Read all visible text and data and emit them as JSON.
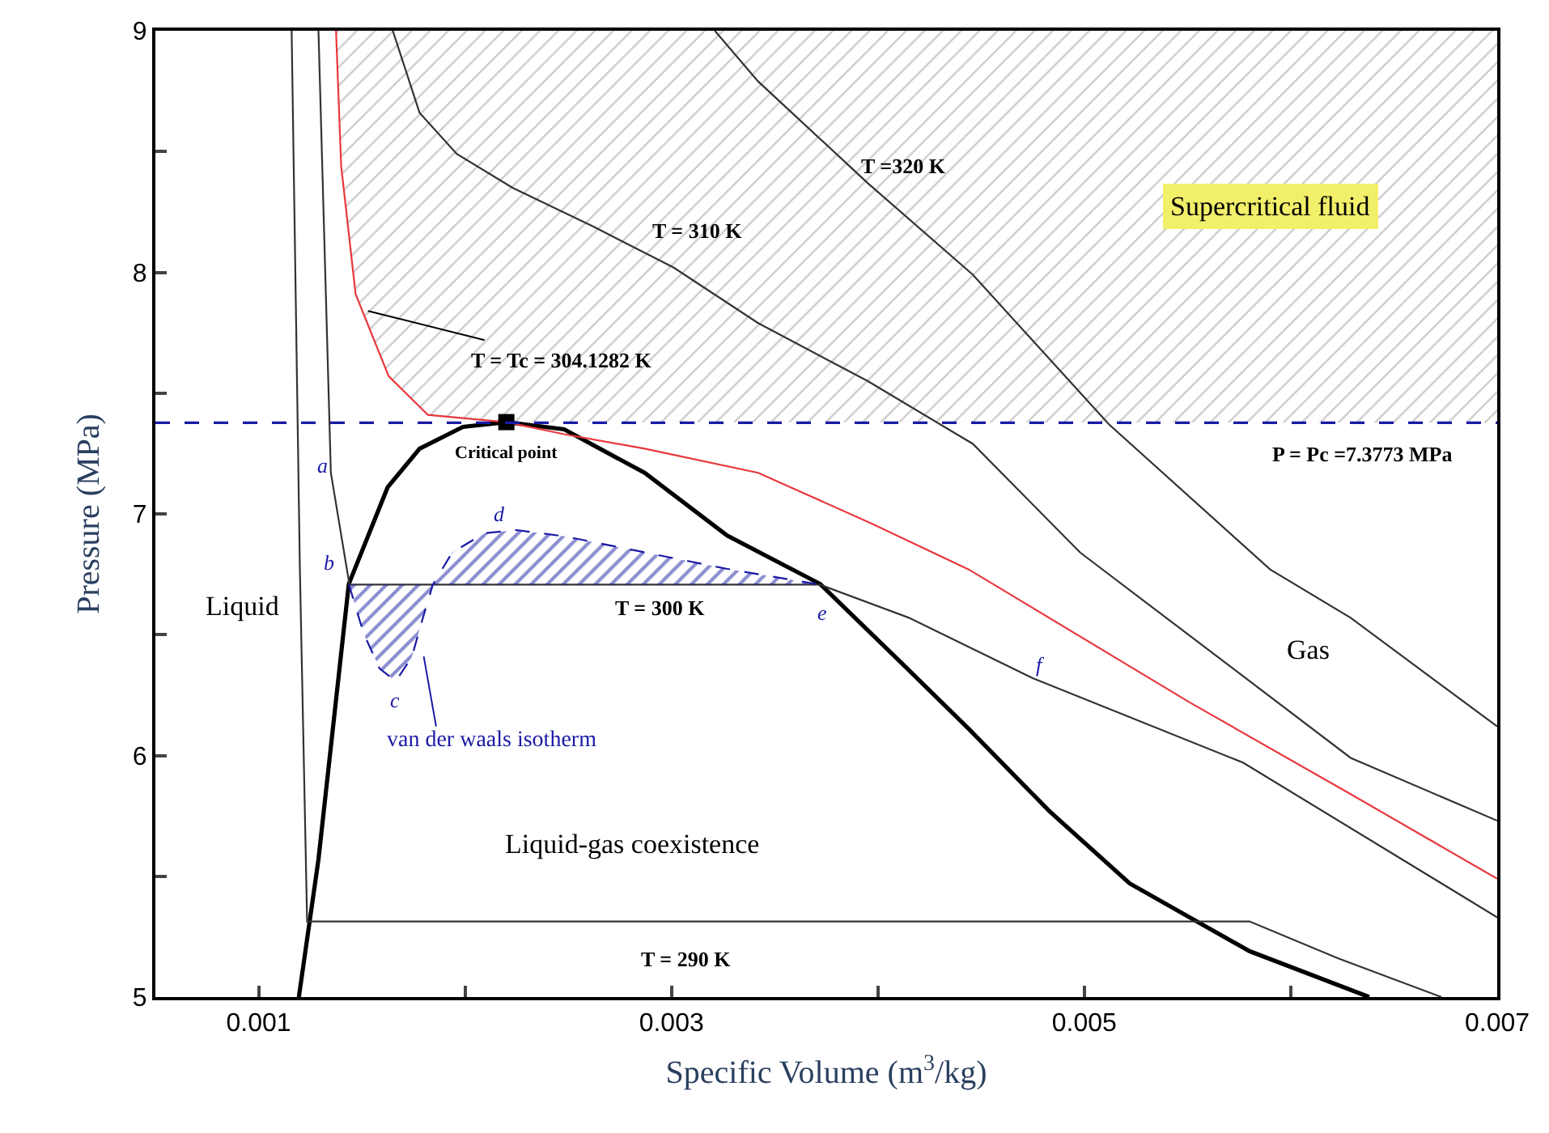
{
  "chart_data": {
    "type": "line",
    "xlabel": "Specific Volume (m$^{3}$/kg)",
    "ylabel": "Pressure (MPa)",
    "xlim": [
      0.0005,
      0.007
    ],
    "ylim": [
      5,
      9
    ],
    "xticks": [
      0.001,
      {
        "value": 0.002,
        "label": null
      },
      0.003,
      {
        "value": 0.004,
        "label": null
      },
      0.005,
      {
        "value": 0.006,
        "label": null
      },
      0.007
    ],
    "yticks": [
      5,
      {
        "value": 5.5,
        "label": null
      },
      6,
      {
        "value": 6.5,
        "label": null
      },
      7,
      {
        "value": 7.5,
        "label": null
      },
      8,
      {
        "value": 8.5,
        "label": null
      },
      9
    ],
    "marker": "none",
    "line_style": "solid",
    "series": [
      {
        "color": "#000000",
        "x": [
          0.001195,
          0.00129,
          0.001437,
          0.001625,
          0.00178,
          0.00199,
          0.0022,
          0.00248,
          0.00287,
          0.00327,
          0.00372,
          0.00413,
          0.00444,
          0.00483,
          0.00522,
          0.0058,
          0.00638
        ],
        "values": [
          5.0,
          5.57,
          6.71,
          7.11,
          7.27,
          7.36,
          7.38,
          7.35,
          7.17,
          6.91,
          6.71,
          6.37,
          6.11,
          5.77,
          5.47,
          5.19,
          5.0
        ]
      },
      {
        "color": "#333333",
        "x": [
          0.00116,
          0.0012,
          0.001235,
          0.0058,
          0.00623,
          0.00673
        ],
        "values": [
          9.0,
          6.77,
          5.313,
          5.313,
          5.16,
          5.0
        ]
      },
      {
        "color": "#333333",
        "x": [
          0.00129,
          0.00135,
          0.00144,
          0.00372,
          0.00415,
          0.00475,
          0.00577,
          0.007
        ],
        "values": [
          9.0,
          7.17,
          6.707,
          6.707,
          6.57,
          6.32,
          5.97,
          5.33
        ]
      },
      {
        "color": "#e8383d",
        "x": [
          0.001375,
          0.0014,
          0.00147,
          0.00163,
          0.00182,
          0.0022,
          0.00248,
          0.00287,
          0.00342,
          0.00397,
          0.00444,
          0.00551,
          0.00629,
          0.007
        ],
        "values": [
          9.0,
          8.44,
          7.91,
          7.57,
          7.41,
          7.38,
          7.33,
          7.27,
          7.17,
          6.96,
          6.77,
          6.22,
          5.84,
          5.49
        ]
      },
      {
        "color": "#333333",
        "x": [
          0.00165,
          0.00178,
          0.00196,
          0.00223,
          0.00262,
          0.00301,
          0.00342,
          0.00395,
          0.00446,
          0.00498,
          0.00629,
          0.007
        ],
        "values": [
          9.0,
          8.66,
          8.49,
          8.35,
          8.19,
          8.02,
          7.79,
          7.55,
          7.29,
          6.84,
          5.99,
          5.73
        ]
      },
      {
        "color": "#333333",
        "x": [
          0.00321,
          0.00342,
          0.00395,
          0.00446,
          0.00512,
          0.0059,
          0.00629,
          0.007
        ],
        "values": [
          9.0,
          8.79,
          8.37,
          7.99,
          7.37,
          6.77,
          6.57,
          6.12
        ]
      },
      {
        "type": "area",
        "color": "#1a1aa6",
        "line_style": "dashed",
        "x": [
          0.001438,
          0.001508,
          0.001586,
          0.001664,
          0.001742,
          0.001797,
          0.001844,
          0.001938,
          0.002094,
          0.00225,
          0.002484,
          0.002875,
          0.003266,
          0.00372
        ],
        "values": [
          6.707,
          6.507,
          6.36,
          6.307,
          6.407,
          6.573,
          6.707,
          6.84,
          6.92,
          6.933,
          6.907,
          6.84,
          6.773,
          6.707
        ]
      },
      {
        "type": "scatter",
        "marker": "square",
        "color": "#000000",
        "x": [
          0.0022
        ],
        "values": [
          7.38
        ]
      }
    ],
    "ref_lines": [
      {
        "axis": "y",
        "value": 7.3773,
        "label": "P = Pc =7.3773 MPa",
        "color": "#1a1aa6",
        "line_style": "dashed"
      }
    ],
    "bands": [
      {
        "axis": "y",
        "from": 7.3773,
        "to": 9,
        "color": "#9a9a9a"
      }
    ],
    "annotations": [
      "T =320 K",
      "T = 310 K",
      {
        "text": "T = Tc = 304.1282 K",
        "x": 0.00153,
        "y": 7.84
      },
      "Critical point",
      "T = 300 K",
      "T = 290 K",
      "Supercritical fluid",
      "Liquid",
      "Gas",
      "Liquid-gas coexistence",
      "van der waals isotherm",
      {
        "text": "a",
        "x": 0.00131,
        "y": 7.2
      },
      "b",
      "c",
      "d",
      "e",
      "f"
    ]
  }
}
